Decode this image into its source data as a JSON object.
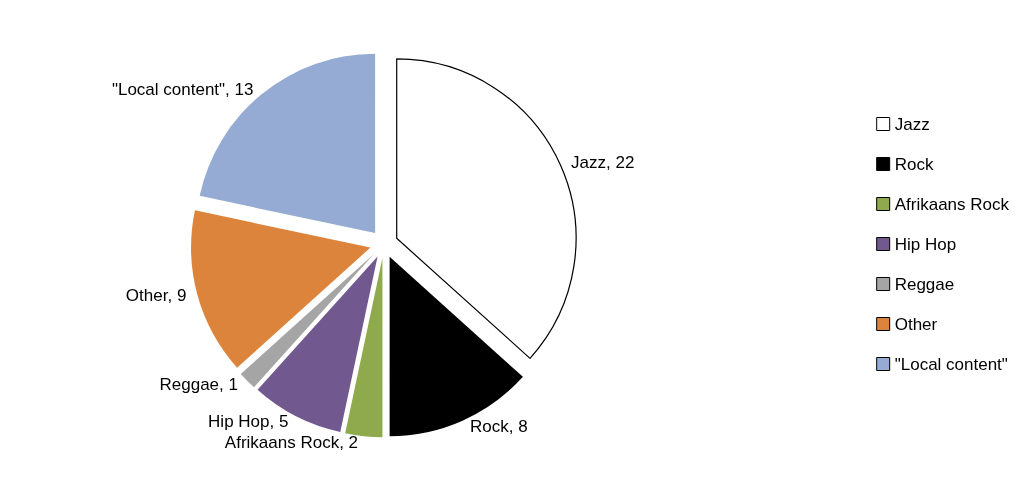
{
  "chart_data": {
    "type": "pie",
    "categories": [
      "Jazz",
      "Rock",
      "Afrikaans Rock",
      "Hip Hop",
      "Reggae",
      "Other",
      "\"Local content\""
    ],
    "values": [
      22,
      8,
      2,
      5,
      1,
      9,
      13
    ],
    "value_labels": [
      "Jazz, 22",
      "Rock, 8",
      "Afrikaans Rock, 2",
      "Hip Hop, 5",
      "Reggae, 1",
      "Other, 9",
      "\"Local content\", 13"
    ],
    "colors": [
      "#ffffff",
      "#000000",
      "#8faa4c",
      "#71588f",
      "#a5a5a5",
      "#dd843c",
      "#95abd3"
    ],
    "legend": "right"
  }
}
